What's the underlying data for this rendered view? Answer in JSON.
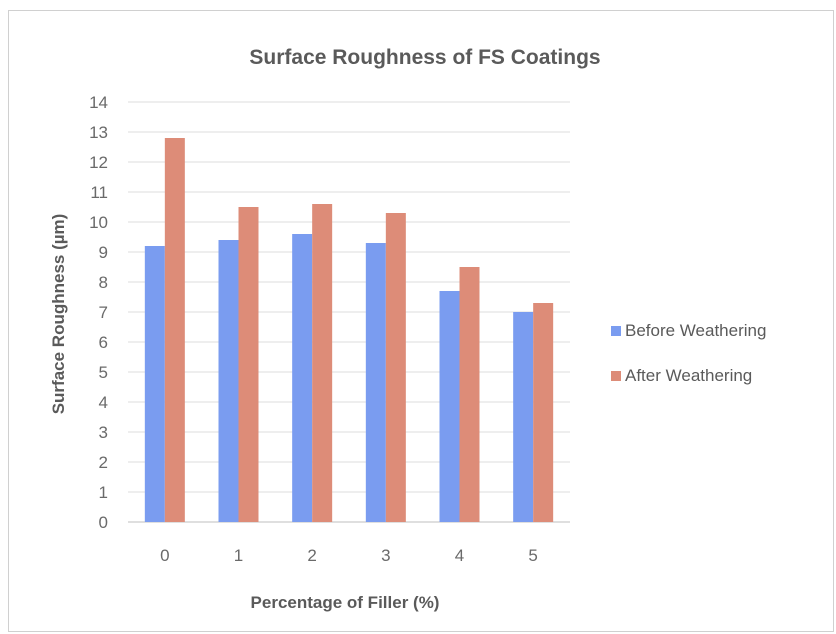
{
  "chart_data": {
    "type": "bar",
    "title": "Surface Roughness of FS Coatings",
    "xlabel": "Percentage of Filler (%)",
    "ylabel": "Surface Roughness (µm)",
    "categories": [
      "0",
      "1",
      "2",
      "3",
      "4",
      "5"
    ],
    "ylim": [
      0,
      14
    ],
    "yticks": [
      0,
      1,
      2,
      3,
      4,
      5,
      6,
      7,
      8,
      9,
      10,
      11,
      12,
      13,
      14
    ],
    "grid": true,
    "legend_position": "right",
    "series": [
      {
        "name": "Before Weathering",
        "color": "#7a9cf0",
        "values": [
          9.2,
          9.4,
          9.6,
          9.3,
          7.7,
          7.0
        ]
      },
      {
        "name": "After Weathering",
        "color": "#dd8c78",
        "values": [
          12.8,
          10.5,
          10.6,
          10.3,
          8.5,
          7.3
        ]
      }
    ]
  }
}
